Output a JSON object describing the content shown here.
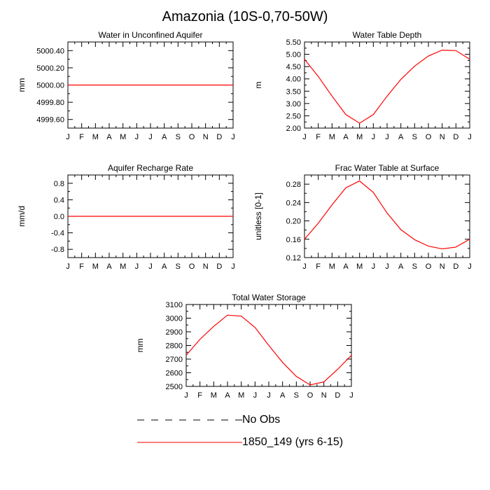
{
  "figure_title": "Amazonia (10S-0,70-50W)",
  "legend": {
    "entries": [
      {
        "label": "No Obs",
        "color": "#000000",
        "style": "dashed"
      },
      {
        "label": "1850_149 (yrs 6-15)",
        "color": "#ff0000",
        "style": "solid"
      }
    ]
  },
  "chart_data": [
    {
      "id": "p1",
      "type": "line",
      "title": "Water in Unconfined Aquifer",
      "ylabel": "mm",
      "categories": [
        "J",
        "F",
        "M",
        "A",
        "M",
        "J",
        "J",
        "A",
        "S",
        "O",
        "N",
        "D",
        "J"
      ],
      "ylim": [
        4999.5,
        5000.5
      ],
      "yticks": [
        4999.6,
        4999.8,
        5000.0,
        5000.2,
        5000.4
      ],
      "ytick_labels": [
        "4999.60",
        "4999.80",
        "5000.00",
        "5000.20",
        "5000.40"
      ],
      "series": [
        {
          "name": "1850_149 (yrs 6-15)",
          "color": "#ff0000",
          "values": [
            5000.0,
            5000.0,
            5000.0,
            5000.0,
            5000.0,
            5000.0,
            5000.0,
            5000.0,
            5000.0,
            5000.0,
            5000.0,
            5000.0,
            5000.0
          ]
        }
      ]
    },
    {
      "id": "p2",
      "type": "line",
      "title": "Water Table Depth",
      "ylabel": "m",
      "categories": [
        "J",
        "F",
        "M",
        "A",
        "M",
        "J",
        "J",
        "A",
        "S",
        "O",
        "N",
        "D",
        "J"
      ],
      "ylim": [
        2.0,
        5.5
      ],
      "yticks": [
        2.0,
        2.5,
        3.0,
        3.5,
        4.0,
        4.5,
        5.0,
        5.5
      ],
      "ytick_labels": [
        "2.00",
        "2.50",
        "3.00",
        "3.50",
        "4.00",
        "4.50",
        "5.00",
        "5.50"
      ],
      "series": [
        {
          "name": "1850_149 (yrs 6-15)",
          "color": "#ff0000",
          "values": [
            4.8,
            4.1,
            3.3,
            2.55,
            2.2,
            2.55,
            3.3,
            3.98,
            4.52,
            4.93,
            5.17,
            5.15,
            4.8
          ]
        }
      ]
    },
    {
      "id": "p3",
      "type": "line",
      "title": "Aquifer Recharge Rate",
      "ylabel": "mm/d",
      "categories": [
        "J",
        "F",
        "M",
        "A",
        "M",
        "J",
        "J",
        "A",
        "S",
        "O",
        "N",
        "D",
        "J"
      ],
      "ylim": [
        -1.0,
        1.0
      ],
      "yticks": [
        -0.8,
        -0.4,
        0.0,
        0.4,
        0.8
      ],
      "ytick_labels": [
        "-0.8",
        "-0.4",
        "0.0",
        "0.4",
        "0.8"
      ],
      "series": [
        {
          "name": "1850_149 (yrs 6-15)",
          "color": "#ff0000",
          "values": [
            0,
            0,
            0,
            0,
            0,
            0,
            0,
            0,
            0,
            0,
            0,
            0,
            0
          ]
        }
      ]
    },
    {
      "id": "p4",
      "type": "line",
      "title": "Frac Water Table at Surface",
      "ylabel": "unitless [0-1]",
      "categories": [
        "J",
        "F",
        "M",
        "A",
        "M",
        "J",
        "J",
        "A",
        "S",
        "O",
        "N",
        "D",
        "J"
      ],
      "ylim": [
        0.12,
        0.3
      ],
      "yticks": [
        0.12,
        0.16,
        0.2,
        0.24,
        0.28
      ],
      "ytick_labels": [
        "0.12",
        "0.16",
        "0.20",
        "0.24",
        "0.28"
      ],
      "series": [
        {
          "name": "1850_149 (yrs 6-15)",
          "color": "#ff0000",
          "values": [
            0.16,
            0.195,
            0.235,
            0.272,
            0.287,
            0.262,
            0.217,
            0.181,
            0.159,
            0.145,
            0.139,
            0.143,
            0.16
          ]
        }
      ]
    },
    {
      "id": "p5",
      "type": "line",
      "title": "Total Water Storage",
      "ylabel": "mm",
      "categories": [
        "J",
        "F",
        "M",
        "A",
        "M",
        "J",
        "J",
        "A",
        "S",
        "O",
        "N",
        "D",
        "J"
      ],
      "ylim": [
        2500,
        3100
      ],
      "yticks": [
        2500,
        2600,
        2700,
        2800,
        2900,
        3000,
        3100
      ],
      "ytick_labels": [
        "2500",
        "2600",
        "2700",
        "2800",
        "2900",
        "3000",
        "3100"
      ],
      "series": [
        {
          "name": "1850_149 (yrs 6-15)",
          "color": "#ff0000",
          "values": [
            2728,
            2845,
            2940,
            3022,
            3015,
            2932,
            2800,
            2676,
            2573,
            2511,
            2533,
            2625,
            2728
          ]
        }
      ]
    }
  ]
}
